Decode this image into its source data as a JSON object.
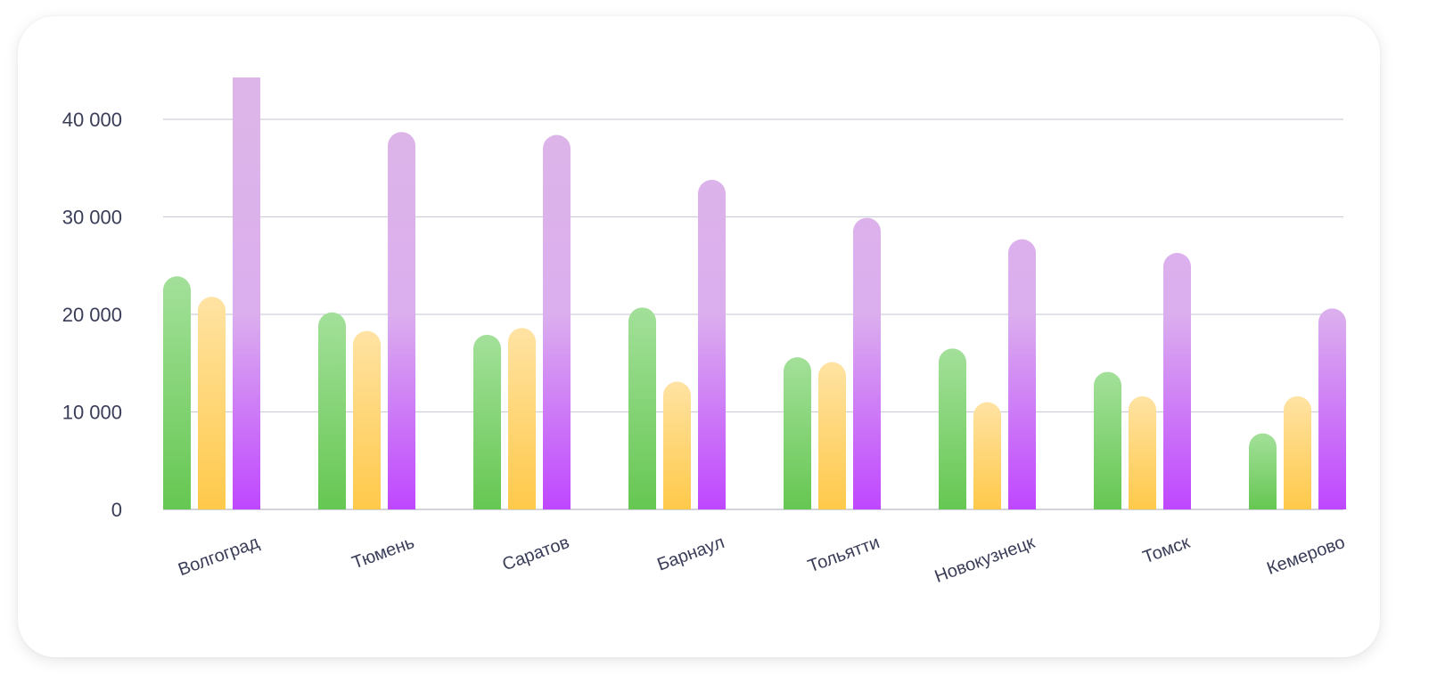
{
  "chart_data": {
    "type": "bar",
    "title": "",
    "xlabel": "",
    "ylabel": "",
    "ylim": [
      0,
      40000
    ],
    "grid": true,
    "yticks": [
      0,
      10000,
      20000,
      30000,
      40000
    ],
    "ytick_labels": [
      "0",
      "10 000",
      "20 000",
      "30 000",
      "40 000"
    ],
    "categories": [
      "Волгоград",
      "Тюмень",
      "Саратов",
      "Барнаул",
      "Тольятти",
      "Новокузнецк",
      "Томск",
      "Кемерово"
    ],
    "series": [
      {
        "name": "green",
        "color": "#66c752",
        "values": [
          23900,
          20200,
          17900,
          20700,
          15600,
          16500,
          14100,
          7800
        ]
      },
      {
        "name": "yellow",
        "color": "#ffc94a",
        "values": [
          21800,
          18300,
          18600,
          13100,
          15100,
          11000,
          11600,
          11600
        ]
      },
      {
        "name": "purple",
        "color": "#bf47ff",
        "values": [
          44300,
          38700,
          38400,
          33800,
          29900,
          27700,
          26300,
          20600
        ]
      }
    ]
  }
}
